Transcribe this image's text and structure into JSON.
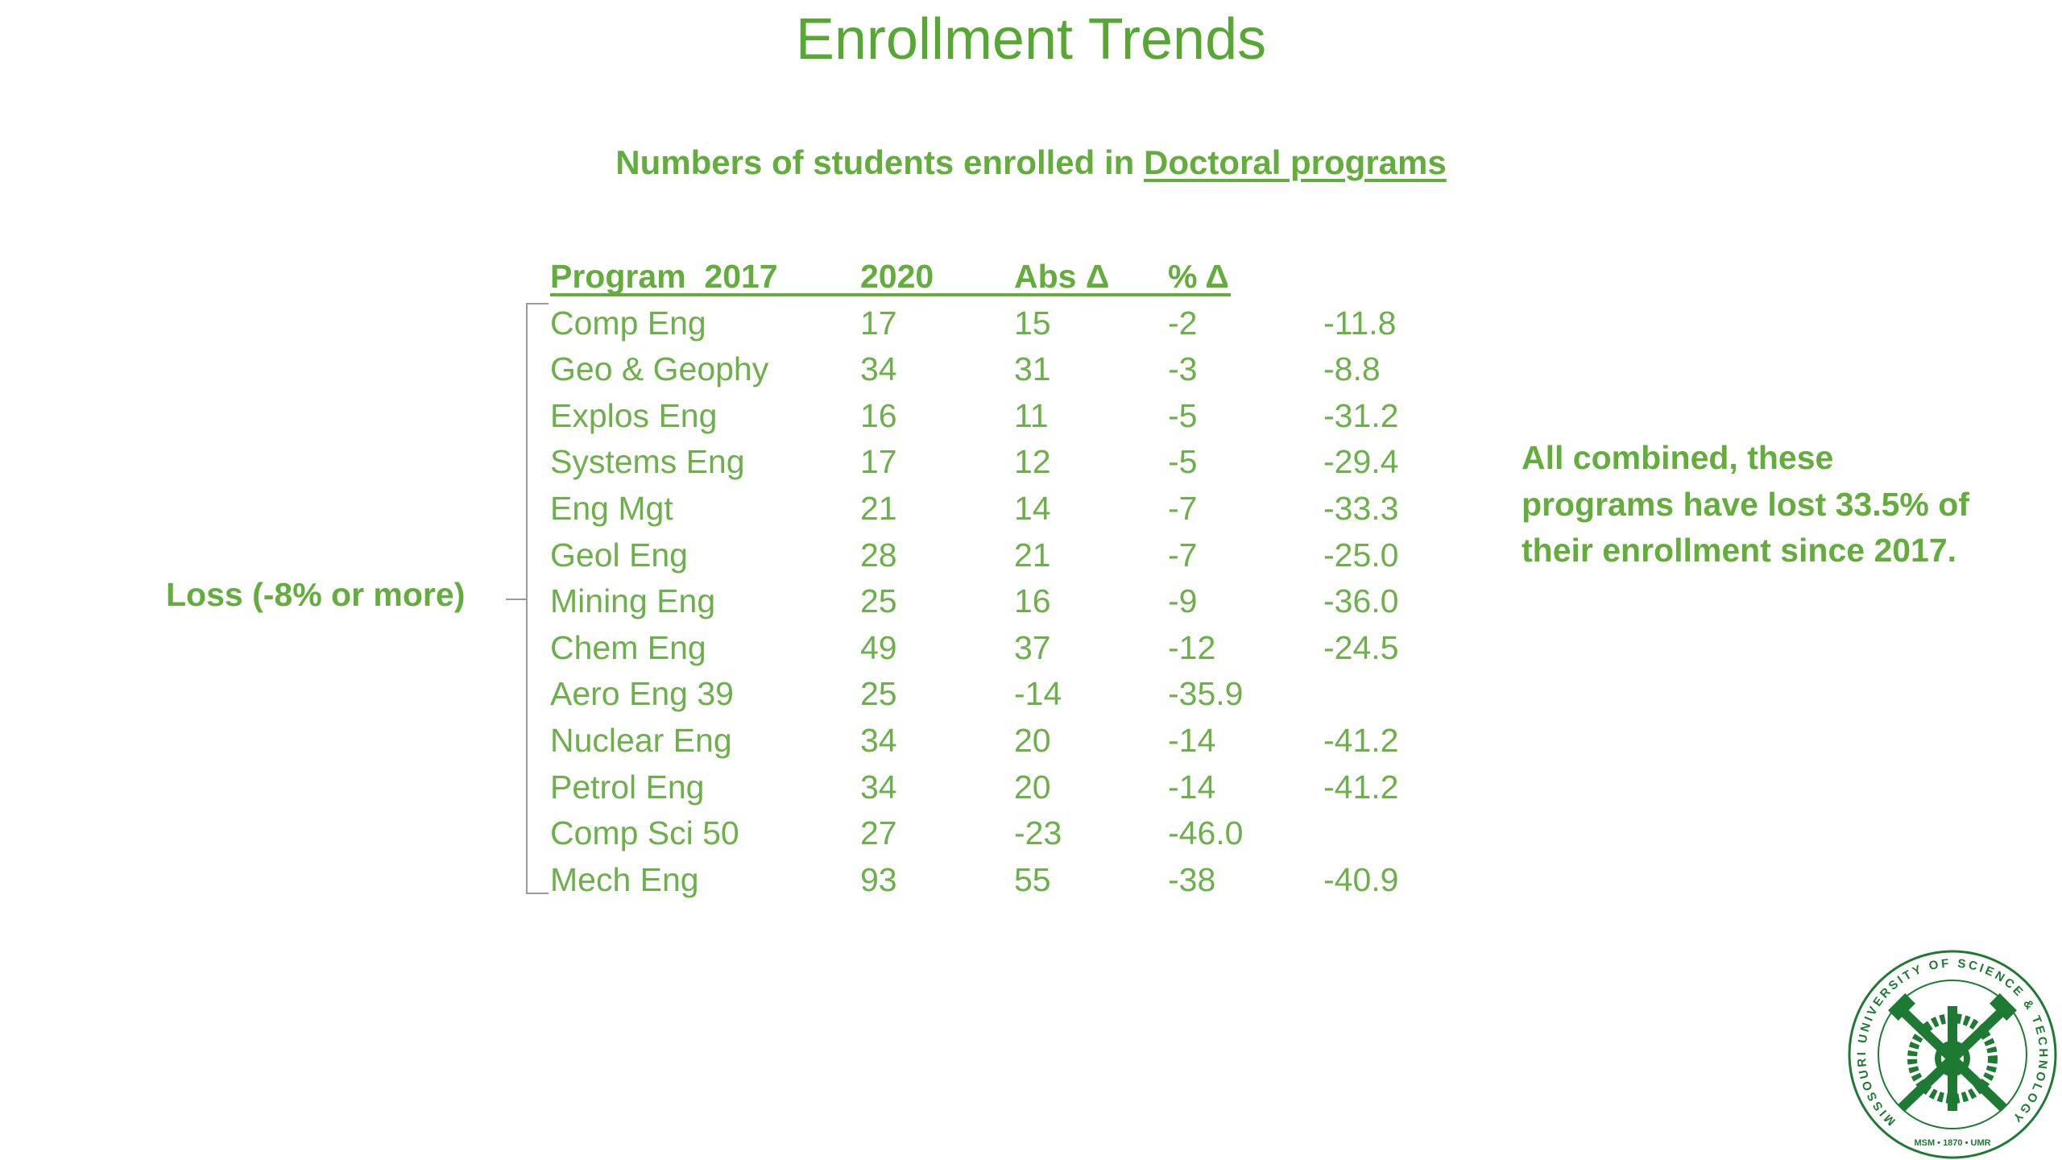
{
  "title": "Enrollment Trends",
  "subtitle": {
    "prefix": "Numbers of students enrolled in ",
    "link": "Doctoral programs"
  },
  "table": {
    "headers": [
      "Program  2017",
      "2020",
      "Abs Δ",
      "% Δ",
      ""
    ],
    "rows": [
      [
        "Comp Eng",
        "17",
        "15",
        "-2",
        "-11.8"
      ],
      [
        "Geo & Geophy",
        "34",
        "31",
        "-3",
        "-8.8"
      ],
      [
        "Explos Eng",
        "16",
        "11",
        "-5",
        "-31.2"
      ],
      [
        "Systems Eng",
        "17",
        "12",
        "-5",
        "-29.4"
      ],
      [
        "Eng Mgt",
        "21",
        "14",
        "-7",
        "-33.3"
      ],
      [
        "Geol Eng",
        "28",
        "21",
        "-7",
        "-25.0"
      ],
      [
        "Mining Eng",
        "25",
        "16",
        "-9",
        "-36.0"
      ],
      [
        "Chem Eng",
        "49",
        "37",
        "-12",
        "-24.5"
      ],
      [
        "Aero Eng 39",
        "25",
        "-14",
        "-35.9",
        ""
      ],
      [
        "Nuclear Eng",
        "34",
        "20",
        "-14",
        "-41.2"
      ],
      [
        "Petrol Eng",
        "34",
        "20",
        "-14",
        "-41.2"
      ],
      [
        "Comp Sci 50",
        "27",
        "-23",
        "-46.0",
        ""
      ],
      [
        "Mech Eng",
        "93",
        "55",
        "-38",
        "-40.9"
      ]
    ]
  },
  "loss_label": "Loss (-8% or more)",
  "summary": "All combined, these programs have lost 33.5% of their enrollment since 2017.",
  "seal": {
    "ring_text": "MISSOURI UNIVERSITY OF SCIENCE & TECHNOLOGY",
    "bottom_text": "MSM • 1870 • UMR"
  },
  "colors": {
    "title": "#56a832",
    "text": "#6cb04a",
    "seal": "#1e7a32"
  }
}
